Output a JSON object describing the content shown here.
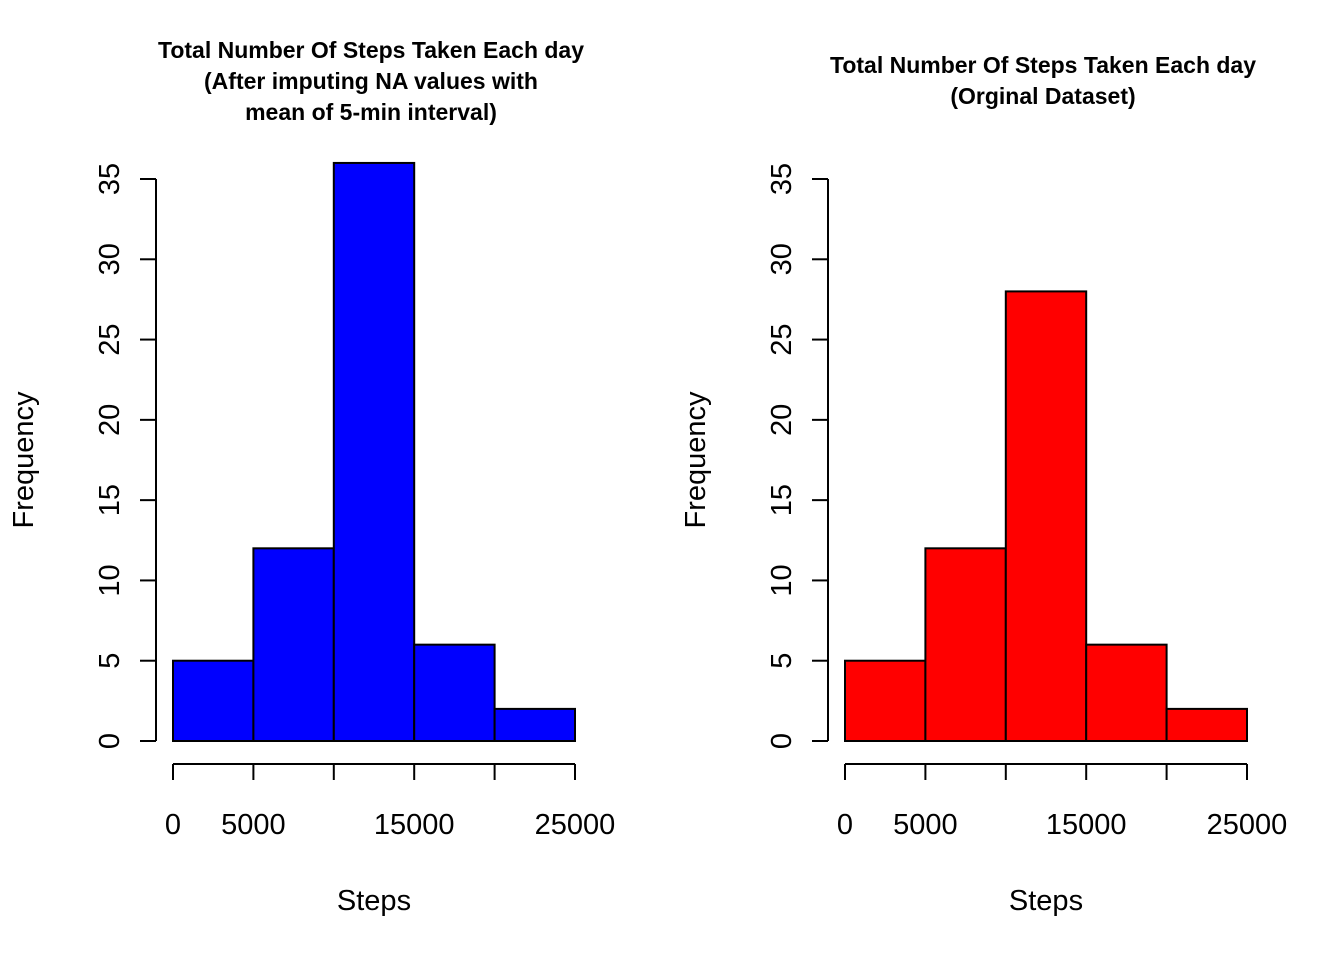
{
  "chart_data": [
    {
      "type": "bar",
      "title_lines": [
        "Total Number Of Steps Taken Each day",
        "(After imputing NA values with",
        "mean of 5-min interval)"
      ],
      "xlabel": "Steps",
      "ylabel": "Frequency",
      "bins": [
        [
          0,
          5000
        ],
        [
          5000,
          10000
        ],
        [
          10000,
          15000
        ],
        [
          15000,
          20000
        ],
        [
          20000,
          25000
        ]
      ],
      "values": [
        5,
        12,
        36,
        6,
        2
      ],
      "xlim": [
        0,
        25000
      ],
      "ylim": [
        0,
        35
      ],
      "x_ticks": [
        0,
        5000,
        10000,
        15000,
        20000,
        25000
      ],
      "x_tick_labels": [
        "0",
        "5000",
        "",
        "15000",
        "",
        "25000"
      ],
      "y_ticks": [
        0,
        5,
        10,
        15,
        20,
        25,
        30,
        35
      ],
      "y_tick_labels": [
        "0",
        "5",
        "10",
        "15",
        "20",
        "25",
        "30",
        "35"
      ],
      "bar_color": "#0000ff",
      "grid": false,
      "legend": "none"
    },
    {
      "type": "bar",
      "title_lines": [
        "Total Number Of Steps Taken Each day",
        "(Orginal Dataset)"
      ],
      "xlabel": "Steps",
      "ylabel": "Frequency",
      "bins": [
        [
          0,
          5000
        ],
        [
          5000,
          10000
        ],
        [
          10000,
          15000
        ],
        [
          15000,
          20000
        ],
        [
          20000,
          25000
        ]
      ],
      "values": [
        5,
        12,
        28,
        6,
        2
      ],
      "xlim": [
        0,
        25000
      ],
      "ylim": [
        0,
        35
      ],
      "x_ticks": [
        0,
        5000,
        10000,
        15000,
        20000,
        25000
      ],
      "x_tick_labels": [
        "0",
        "5000",
        "",
        "15000",
        "",
        "25000"
      ],
      "y_ticks": [
        0,
        5,
        10,
        15,
        20,
        25,
        30,
        35
      ],
      "y_tick_labels": [
        "0",
        "5",
        "10",
        "15",
        "20",
        "25",
        "30",
        "35"
      ],
      "bar_color": "#ff0000",
      "grid": false,
      "legend": "none"
    }
  ]
}
